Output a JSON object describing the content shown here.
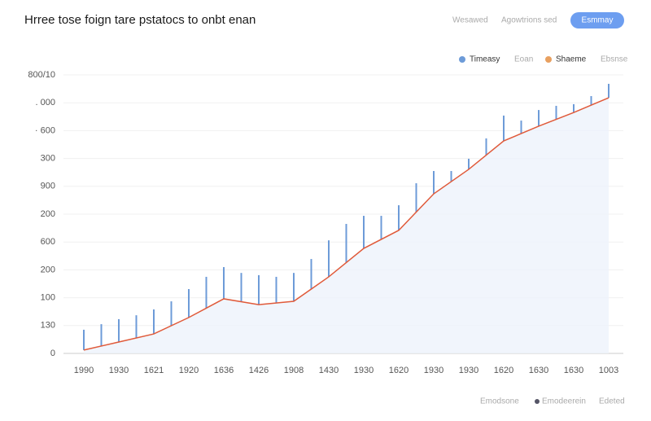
{
  "chart_data": {
    "type": "bar-line",
    "title": "Hrree tose foign tare pstatocs to onbt enan",
    "nav": [
      "Wesawed",
      "Agowtrions sed"
    ],
    "button": "Esmmay",
    "footer": [
      "Emodsone",
      "Emodeerein",
      "Edeted"
    ],
    "legend_extra": [
      "Eoan",
      "Ebsnse"
    ],
    "categories": [
      "1990",
      "1930",
      "1621",
      "1920",
      "1636",
      "1426",
      "1908",
      "1430",
      "1930",
      "1620",
      "1930",
      "1930",
      "1620",
      "1630",
      "1630",
      "1003"
    ],
    "ylim": [
      0,
      1000
    ],
    "yticks": [
      0,
      {
        "value": 100,
        "label": "130"
      },
      {
        "value": 200,
        "label": "100"
      },
      {
        "value": 300,
        "label": "200"
      },
      {
        "value": 400,
        "label": "600"
      },
      {
        "value": 500,
        "label": "200"
      },
      {
        "value": 600,
        "label": "900"
      },
      {
        "value": 700,
        "label": "300"
      },
      {
        "value": 800,
        "label": "· 600"
      },
      {
        "value": 900,
        "label": ". 000"
      },
      {
        "value": 1000,
        "label": "800/10"
      }
    ],
    "grid": true,
    "series": [
      {
        "name": "Timeasy",
        "color": "#6d9bd8",
        "x": [
          0,
          0.5,
          1,
          1.5,
          2,
          2.5,
          3,
          3.5,
          4,
          4.5,
          5,
          5.5,
          6,
          6.5,
          7,
          7.5,
          8,
          8.5,
          9,
          9.5,
          10,
          10.5,
          11,
          11.5,
          12,
          12.5,
          13,
          13.5,
          14,
          14.5,
          15
        ],
        "values": [
          85,
          105,
          123,
          137,
          158,
          187,
          231,
          275,
          310,
          289,
          281,
          275,
          289,
          339,
          406,
          465,
          494,
          494,
          532,
          611,
          655,
          655,
          699,
          772,
          854,
          836,
          874,
          889,
          895,
          924,
          968
        ]
      },
      {
        "name": "Shaeme",
        "color": "#e05a3a",
        "values": [
          12,
          41,
          70,
          129,
          196,
          175,
          187,
          275,
          377,
          442,
          573,
          661,
          763,
          816,
          865,
          918
        ]
      }
    ]
  }
}
